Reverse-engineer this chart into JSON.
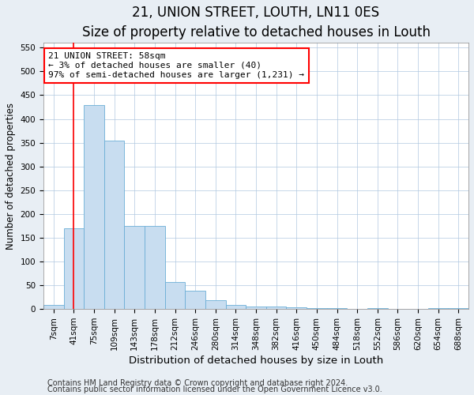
{
  "title": "21, UNION STREET, LOUTH, LN11 0ES",
  "subtitle": "Size of property relative to detached houses in Louth",
  "xlabel": "Distribution of detached houses by size in Louth",
  "ylabel": "Number of detached properties",
  "footnote1": "Contains HM Land Registry data © Crown copyright and database right 2024.",
  "footnote2": "Contains public sector information licensed under the Open Government Licence v3.0.",
  "bar_labels": [
    "7sqm",
    "41sqm",
    "75sqm",
    "109sqm",
    "143sqm",
    "178sqm",
    "212sqm",
    "246sqm",
    "280sqm",
    "314sqm",
    "348sqm",
    "382sqm",
    "416sqm",
    "450sqm",
    "484sqm",
    "518sqm",
    "552sqm",
    "586sqm",
    "620sqm",
    "654sqm",
    "688sqm"
  ],
  "bar_values": [
    8,
    170,
    430,
    355,
    175,
    175,
    57,
    38,
    18,
    8,
    5,
    5,
    3,
    2,
    2,
    0,
    2,
    0,
    0,
    2,
    2
  ],
  "bar_color": "#c8ddf0",
  "bar_edge_color": "#6baed6",
  "annotation_box_text": "21 UNION STREET: 58sqm\n← 3% of detached houses are smaller (40)\n97% of semi-detached houses are larger (1,231) →",
  "annotation_box_color": "red",
  "annotation_box_facecolor": "white",
  "vline_color": "red",
  "ylim": [
    0,
    560
  ],
  "yticks": [
    0,
    50,
    100,
    150,
    200,
    250,
    300,
    350,
    400,
    450,
    500,
    550
  ],
  "background_color": "#e8eef4",
  "plot_bg_color": "white",
  "title_fontsize": 12,
  "xlabel_fontsize": 9.5,
  "ylabel_fontsize": 8.5,
  "tick_fontsize": 7.5,
  "annotation_fontsize": 8,
  "footnote_fontsize": 7
}
